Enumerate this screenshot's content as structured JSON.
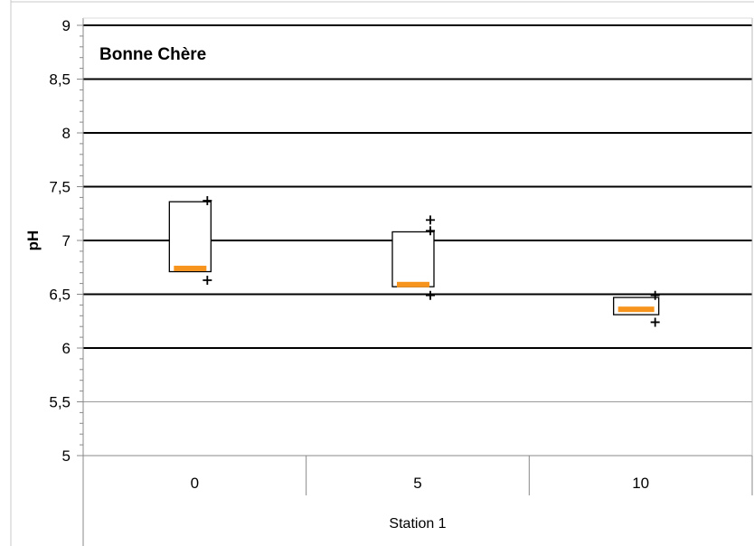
{
  "chart_data": {
    "type": "box",
    "title": "Bonne Chère",
    "ylabel": "pH",
    "xlabel": "Station 1",
    "ylim": [
      5,
      9
    ],
    "yticks": [
      5,
      5.5,
      6,
      6.5,
      7,
      7.5,
      8,
      8.5,
      9
    ],
    "ytick_labels": [
      "5",
      "5,5",
      "6",
      "6,5",
      "7",
      "7,5",
      "8",
      "8,5",
      "9"
    ],
    "thick_gridlines": [
      6,
      6.5,
      7,
      7.5,
      8,
      8.5,
      9
    ],
    "categories": [
      "0",
      "5",
      "10"
    ],
    "boxes": [
      {
        "q1": 6.71,
        "q3": 7.36,
        "median": 6.74,
        "outliers": [
          7.37,
          6.63
        ]
      },
      {
        "q1": 6.57,
        "q3": 7.08,
        "median": 6.59,
        "outliers": [
          7.19,
          7.09,
          6.49
        ]
      },
      {
        "q1": 6.31,
        "q3": 6.47,
        "median": 6.36,
        "outliers": [
          6.49,
          6.24
        ]
      }
    ],
    "grid": true,
    "legend": "none",
    "colors": {
      "median": "#f7941d",
      "box_edge": "#000000",
      "grid": "#000000",
      "frame": "#888888"
    }
  }
}
